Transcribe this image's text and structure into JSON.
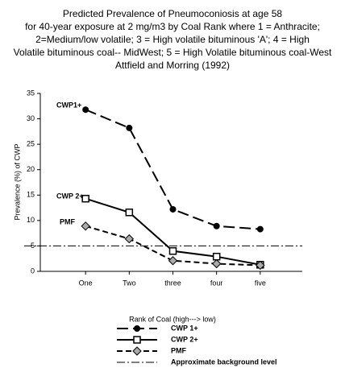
{
  "chart_data": {
    "type": "line",
    "title": [
      "Predicted Prevalence of Pneumoconiosis at age 58",
      "for 40-year exposure at 2 mg/m3 by Coal Rank where 1 = Anthracite;",
      "2=Medium/low volatile; 3 = High volatile bituminous 'A'; 4 = High",
      "Volatile bituminous coal-- MidWest; 5 = High Volatile bituminous coal-West",
      "Attfield and Morring (1992)"
    ],
    "x_label": "Rank of Coal (high---> low)",
    "y_label": "Prevalence (%) of CWP",
    "categories": [
      "One",
      "Two",
      "three",
      "four",
      "five"
    ],
    "series": [
      {
        "name": "CWP 1+",
        "color": "#000000",
        "marker": "circle",
        "dash": "14 6",
        "values": [
          31.8,
          28.2,
          12.2,
          8.9,
          8.3
        ]
      },
      {
        "name": "CWP 2+",
        "color": "#000000",
        "marker": "square",
        "dash": "none",
        "values": [
          14.3,
          11.6,
          4.0,
          2.9,
          1.3
        ]
      },
      {
        "name": "PMF",
        "color": "#000000",
        "marker": "diamond",
        "dash": "7 4",
        "values": [
          8.9,
          6.4,
          2.1,
          1.5,
          1.2
        ]
      }
    ],
    "reference": {
      "name": "Approximate background level",
      "value": 5,
      "dash": "10 3 2 3"
    },
    "annotations": [
      "CWP1+",
      "CWP 2+",
      "PMF"
    ],
    "ylim": [
      0,
      35
    ],
    "yticks": [
      0,
      5,
      10,
      15,
      20,
      25,
      30,
      35
    ]
  }
}
